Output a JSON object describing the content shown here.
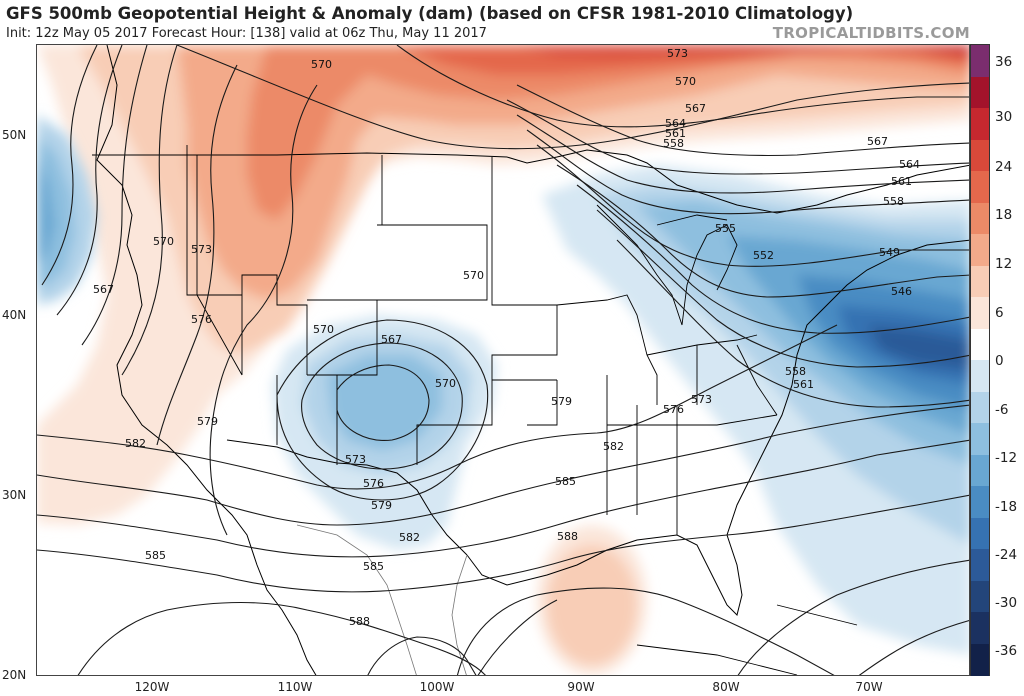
{
  "header": {
    "title": "GFS 500mb Geopotential Height & Anomaly (dam) (based on CFSR 1981-2010 Climatology)",
    "subtitle": "Init: 12z May 05 2017   Forecast Hour: [138]   valid at 06z Thu, May 11 2017",
    "brand": "TROPICALTIDBITS.COM"
  },
  "axes": {
    "latitudes": [
      "50N",
      "40N",
      "30N",
      "20N"
    ],
    "longitudes": [
      "120W",
      "110W",
      "100W",
      "90W",
      "80W",
      "70W"
    ]
  },
  "colorbar": {
    "labels": [
      "36",
      "30",
      "24",
      "18",
      "12",
      "6",
      "0",
      "-6",
      "-12",
      "-18",
      "-24",
      "-30",
      "-36"
    ],
    "colors": [
      "#7b2d6e",
      "#a3132b",
      "#c6282f",
      "#d9493a",
      "#e4684c",
      "#ec8a67",
      "#f3aa8a",
      "#f8cdb6",
      "#fbe6da",
      "#ffffff",
      "#d6e7f3",
      "#b3d3e9",
      "#8ebfdf",
      "#69a7d2",
      "#4a8cc3",
      "#3672b2",
      "#2c5a98",
      "#23457a",
      "#1b3160",
      "#122149"
    ]
  },
  "contour_labels": [
    "573",
    "570",
    "567",
    "564",
    "561",
    "558",
    "555",
    "552",
    "549",
    "546",
    "567",
    "564",
    "561",
    "558",
    "570",
    "570",
    "573",
    "570",
    "567",
    "576",
    "579",
    "582",
    "570",
    "567",
    "570",
    "573",
    "576",
    "579",
    "582",
    "585",
    "585",
    "588",
    "588",
    "585",
    "582",
    "579",
    "576",
    "573",
    "558",
    "561"
  ]
}
